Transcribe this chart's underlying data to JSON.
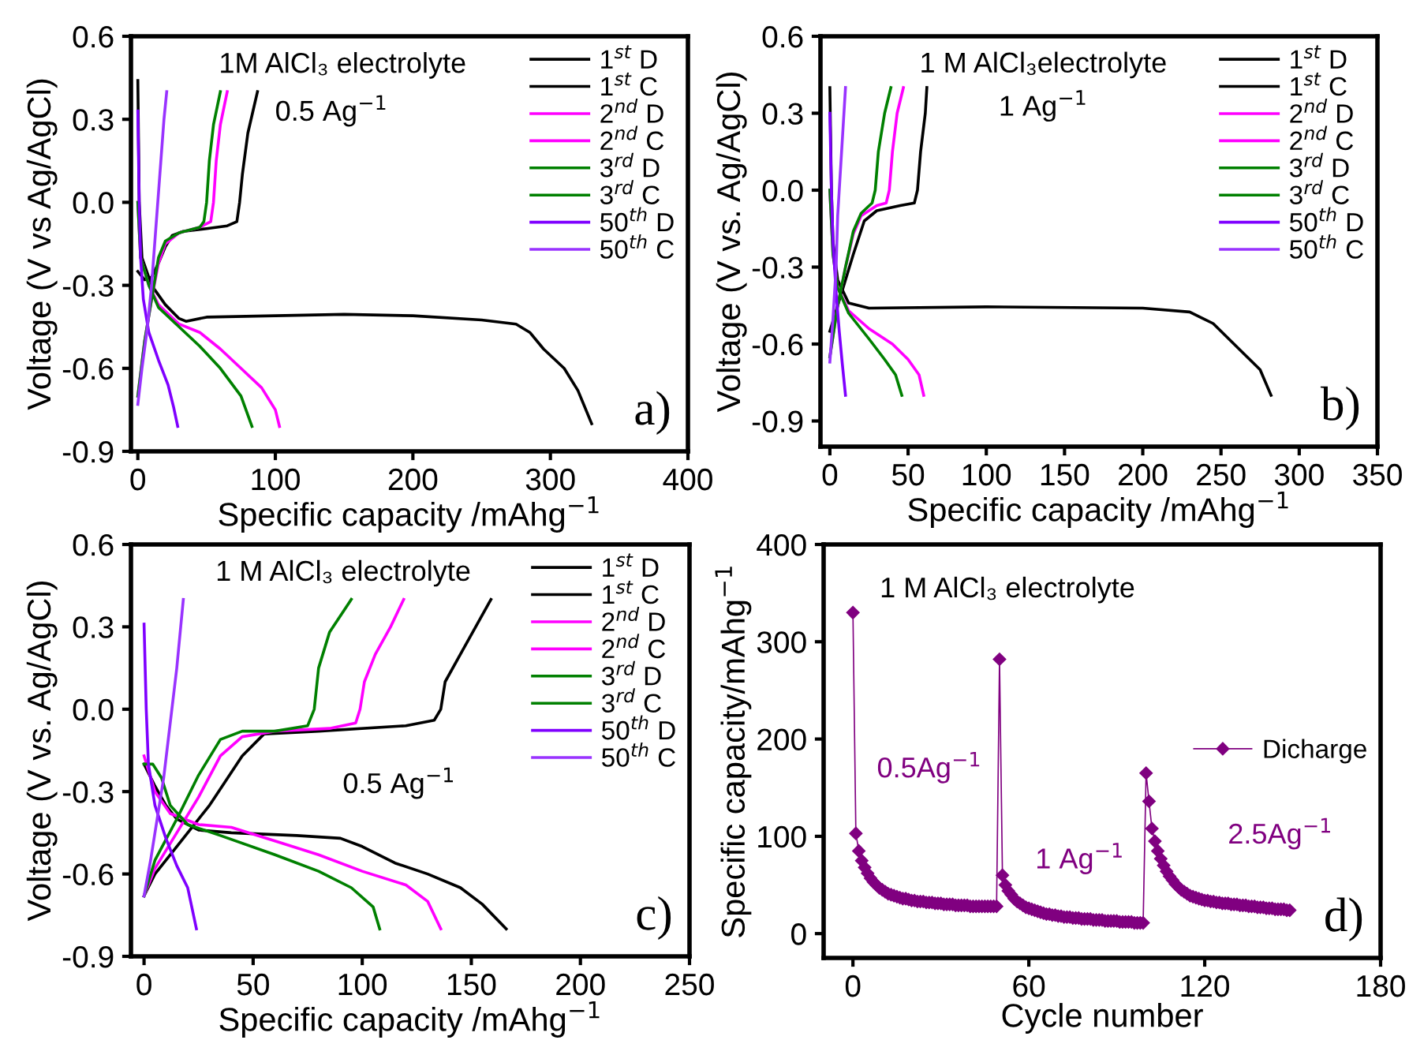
{
  "chart_data": [
    {
      "type": "line",
      "xlabel": "Specific capacity /mAhg$^{−1}$",
      "ylabel": "Voltage (V vs Ag/AgCl)",
      "xlim": [
        -5,
        400
      ],
      "ylim": [
        -0.9,
        0.6
      ],
      "xticks": [
        0,
        100,
        200,
        300,
        400
      ],
      "yticks": [
        {
          "value": -0.9,
          "label": "-0.9"
        },
        {
          "value": -0.6,
          "label": "-0.6"
        },
        {
          "value": -0.3,
          "label": "-0.3"
        },
        {
          "value": 0.0,
          "label": "0.0"
        },
        {
          "value": 0.3,
          "label": "0.3"
        },
        {
          "value": 0.6,
          "label": "0.6"
        }
      ],
      "grid": false,
      "legend": "top right",
      "annotations": [
        "1M AlCl₃ electrolyte",
        "0.5 Ag$^{−1}$",
        "a)"
      ],
      "series": [
        {
          "name": "1$^{st}$ D",
          "color": "#000000",
          "x": [
            0,
            1,
            3,
            10,
            20,
            30,
            35,
            50,
            100,
            150,
            200,
            250,
            275,
            285,
            295,
            310,
            320,
            330
          ],
          "values": [
            0.44,
            0.0,
            -0.2,
            -0.3,
            -0.37,
            -0.42,
            -0.43,
            -0.415,
            -0.41,
            -0.405,
            -0.41,
            -0.425,
            -0.44,
            -0.47,
            -0.53,
            -0.6,
            -0.68,
            -0.8
          ]
        },
        {
          "name": "1$^{st}$ C",
          "color": "#000000",
          "x": [
            0,
            5,
            10,
            15,
            20,
            25,
            33,
            50,
            65,
            72,
            74,
            76,
            80,
            87
          ],
          "values": [
            -0.25,
            -0.28,
            -0.27,
            -0.22,
            -0.16,
            -0.12,
            -0.105,
            -0.095,
            -0.085,
            -0.07,
            0.0,
            0.1,
            0.25,
            0.4
          ]
        },
        {
          "name": "2$^{nd}$ D",
          "color": "#ff00ff",
          "x": [
            0,
            2,
            8,
            15,
            30,
            45,
            60,
            75,
            90,
            100,
            103
          ],
          "values": [
            0.0,
            -0.2,
            -0.3,
            -0.37,
            -0.44,
            -0.47,
            -0.53,
            -0.6,
            -0.67,
            -0.75,
            -0.81
          ]
        },
        {
          "name": "2$^{nd}$ C",
          "color": "#ff00ff",
          "x": [
            0,
            5,
            10,
            15,
            20,
            30,
            45,
            53,
            55,
            57,
            60,
            65
          ],
          "values": [
            -0.7,
            -0.5,
            -0.35,
            -0.22,
            -0.15,
            -0.11,
            -0.09,
            -0.07,
            0.0,
            0.15,
            0.28,
            0.4
          ]
        },
        {
          "name": "3$^{rd}$ D",
          "color": "#008000",
          "x": [
            0,
            2,
            8,
            15,
            30,
            45,
            60,
            75,
            83
          ],
          "values": [
            0.0,
            -0.2,
            -0.3,
            -0.38,
            -0.45,
            -0.52,
            -0.6,
            -0.7,
            -0.81
          ]
        },
        {
          "name": "3$^{rd}$ C",
          "color": "#008000",
          "x": [
            0,
            5,
            10,
            15,
            20,
            30,
            45,
            48,
            50,
            52,
            55,
            60
          ],
          "values": [
            -0.7,
            -0.5,
            -0.35,
            -0.2,
            -0.14,
            -0.11,
            -0.09,
            -0.07,
            0.0,
            0.15,
            0.28,
            0.4
          ]
        },
        {
          "name": "50$^{th}$ D",
          "color": "#7f00ff",
          "x": [
            0,
            1,
            2,
            4,
            8,
            15,
            22,
            26,
            29
          ],
          "values": [
            0.33,
            0.0,
            -0.2,
            -0.35,
            -0.47,
            -0.57,
            -0.66,
            -0.74,
            -0.81
          ]
        },
        {
          "name": "50$^{th}$ C",
          "color": "#9933ff",
          "x": [
            0,
            3,
            7,
            10,
            13,
            16,
            19,
            21
          ],
          "values": [
            -0.73,
            -0.6,
            -0.45,
            -0.3,
            -0.1,
            0.1,
            0.3,
            0.4
          ]
        }
      ]
    },
    {
      "type": "line",
      "xlabel": "Specific capacity /mAhg$^{−1}$",
      "ylabel": "Voltage (V vs. Ag/AgCl)",
      "xlim": [
        -6,
        350
      ],
      "ylim": [
        -1.0,
        0.6
      ],
      "xticks": [
        0,
        50,
        100,
        150,
        200,
        250,
        300,
        350
      ],
      "yticks": [
        {
          "value": -0.9,
          "label": "-0.9"
        },
        {
          "value": -0.6,
          "label": "-0.6"
        },
        {
          "value": -0.3,
          "label": "-0.3"
        },
        {
          "value": 0.0,
          "label": "0.0"
        },
        {
          "value": 0.3,
          "label": "0.3"
        },
        {
          "value": 0.6,
          "label": "0.6"
        }
      ],
      "grid": false,
      "legend": "top right",
      "annotations": [
        "1 M AlCl₃electrolyte",
        "1 Ag$^{−1}$",
        "b)"
      ],
      "series": [
        {
          "name": "1$^{st}$ D",
          "color": "#000000",
          "x": [
            0,
            1,
            2,
            5,
            12,
            25,
            100,
            200,
            230,
            245,
            255,
            265,
            275,
            282
          ],
          "values": [
            0.4,
            0.0,
            -0.2,
            -0.35,
            -0.44,
            -0.46,
            -0.455,
            -0.46,
            -0.475,
            -0.52,
            -0.58,
            -0.64,
            -0.7,
            -0.8
          ]
        },
        {
          "name": "1$^{st}$ C",
          "color": "#000000",
          "x": [
            0,
            5,
            10,
            15,
            22,
            30,
            45,
            54,
            56,
            58,
            61,
            62
          ],
          "values": [
            -0.55,
            -0.45,
            -0.35,
            -0.25,
            -0.12,
            -0.08,
            -0.06,
            -0.05,
            0.0,
            0.15,
            0.3,
            0.4
          ]
        },
        {
          "name": "2$^{nd}$ D",
          "color": "#ff00ff",
          "x": [
            0,
            2,
            5,
            12,
            25,
            40,
            50,
            57,
            60
          ],
          "values": [
            0.0,
            -0.25,
            -0.38,
            -0.47,
            -0.54,
            -0.6,
            -0.66,
            -0.72,
            -0.8
          ]
        },
        {
          "name": "2$^{nd}$ C",
          "color": "#ff00ff",
          "x": [
            0,
            5,
            10,
            15,
            20,
            30,
            36,
            38,
            40,
            43,
            47
          ],
          "values": [
            -0.65,
            -0.45,
            -0.3,
            -0.17,
            -0.1,
            -0.06,
            -0.05,
            0.0,
            0.15,
            0.3,
            0.4
          ]
        },
        {
          "name": "3$^{rd}$ D",
          "color": "#008000",
          "x": [
            0,
            2,
            5,
            12,
            25,
            35,
            42,
            46
          ],
          "values": [
            0.0,
            -0.25,
            -0.38,
            -0.48,
            -0.58,
            -0.66,
            -0.72,
            -0.8
          ]
        },
        {
          "name": "3$^{rd}$ C",
          "color": "#008000",
          "x": [
            0,
            5,
            10,
            15,
            20,
            27,
            29,
            31,
            35,
            39
          ],
          "values": [
            -0.65,
            -0.45,
            -0.3,
            -0.16,
            -0.09,
            -0.05,
            0.0,
            0.15,
            0.3,
            0.4
          ]
        },
        {
          "name": "50$^{th}$ D",
          "color": "#7f00ff",
          "x": [
            0,
            1,
            2,
            4,
            6,
            8,
            10
          ],
          "values": [
            0.3,
            0.0,
            -0.2,
            -0.4,
            -0.55,
            -0.68,
            -0.8
          ]
        },
        {
          "name": "50$^{th}$ C",
          "color": "#9933ff",
          "x": [
            0,
            2,
            4,
            5,
            7,
            9,
            10
          ],
          "values": [
            -0.67,
            -0.5,
            -0.3,
            -0.1,
            0.1,
            0.3,
            0.4
          ]
        }
      ]
    },
    {
      "type": "line",
      "xlabel": "Specific capacity /mAhg$^{−1}$",
      "ylabel": "Voltage (V vs. Ag/AgCl)",
      "xlim": [
        -6,
        250
      ],
      "ylim": [
        -0.9,
        0.6
      ],
      "xticks": [
        0,
        50,
        100,
        150,
        200,
        250
      ],
      "yticks": [
        {
          "value": -0.9,
          "label": "-0.9"
        },
        {
          "value": -0.6,
          "label": "-0.6"
        },
        {
          "value": -0.3,
          "label": "-0.3"
        },
        {
          "value": 0.0,
          "label": "0.0"
        },
        {
          "value": 0.3,
          "label": "0.3"
        },
        {
          "value": 0.6,
          "label": "0.6"
        }
      ],
      "grid": false,
      "legend": "top right",
      "annotations": [
        "1 M AlCl₃ electrolyte",
        "0.5 Ag$^{−1}$",
        "c)"
      ],
      "series": [
        {
          "name": "1$^{st}$ D",
          "color": "#000000",
          "x": [
            0,
            5,
            10,
            15,
            25,
            40,
            70,
            90,
            100,
            115,
            130,
            145,
            155,
            166
          ],
          "values": [
            -0.2,
            -0.28,
            -0.35,
            -0.4,
            -0.44,
            -0.45,
            -0.46,
            -0.47,
            -0.5,
            -0.56,
            -0.6,
            -0.65,
            -0.71,
            -0.8
          ]
        },
        {
          "name": "1$^{st}$ C",
          "color": "#000000",
          "x": [
            0,
            5,
            15,
            30,
            45,
            55,
            80,
            120,
            133,
            136,
            138,
            145,
            152,
            159
          ],
          "values": [
            -0.68,
            -0.6,
            -0.5,
            -0.35,
            -0.17,
            -0.09,
            -0.08,
            -0.06,
            -0.04,
            0.0,
            0.1,
            0.2,
            0.3,
            0.4
          ]
        },
        {
          "name": "2$^{nd}$ D",
          "color": "#ff00ff",
          "x": [
            0,
            5,
            12,
            25,
            40,
            60,
            80,
            100,
            120,
            130,
            136
          ],
          "values": [
            -0.17,
            -0.3,
            -0.38,
            -0.42,
            -0.43,
            -0.48,
            -0.53,
            -0.59,
            -0.64,
            -0.7,
            -0.8
          ]
        },
        {
          "name": "2$^{nd}$ C",
          "color": "#ff00ff",
          "x": [
            0,
            5,
            15,
            25,
            35,
            45,
            60,
            85,
            97,
            99,
            101,
            106,
            113,
            119
          ],
          "values": [
            -0.68,
            -0.58,
            -0.45,
            -0.32,
            -0.17,
            -0.1,
            -0.08,
            -0.07,
            -0.05,
            0.0,
            0.1,
            0.2,
            0.3,
            0.4
          ]
        },
        {
          "name": "3$^{rd}$ D",
          "color": "#008000",
          "x": [
            0,
            4,
            8,
            12,
            20,
            35,
            60,
            80,
            95,
            105,
            108
          ],
          "values": [
            -0.2,
            -0.2,
            -0.25,
            -0.35,
            -0.42,
            -0.46,
            -0.53,
            -0.59,
            -0.65,
            -0.72,
            -0.8
          ]
        },
        {
          "name": "3$^{rd}$ C",
          "color": "#008000",
          "x": [
            0,
            5,
            15,
            25,
            35,
            45,
            60,
            75,
            78,
            80,
            85,
            95
          ],
          "values": [
            -0.68,
            -0.55,
            -0.4,
            -0.24,
            -0.11,
            -0.08,
            -0.08,
            -0.06,
            0.0,
            0.15,
            0.28,
            0.4
          ]
        },
        {
          "name": "50$^{th}$ D",
          "color": "#7f00ff",
          "x": [
            0,
            1,
            2,
            5,
            10,
            15,
            20,
            24
          ],
          "values": [
            0.31,
            0.0,
            -0.2,
            -0.35,
            -0.47,
            -0.57,
            -0.65,
            -0.8
          ]
        },
        {
          "name": "50$^{th}$ C",
          "color": "#9933ff",
          "x": [
            0,
            3,
            6,
            9,
            12,
            15,
            18
          ],
          "values": [
            -0.68,
            -0.55,
            -0.4,
            -0.25,
            -0.05,
            0.15,
            0.4
          ]
        }
      ]
    },
    {
      "type": "line",
      "xlabel": "Cycle number",
      "ylabel": "Specific capacity/mAhg$^{−1}$",
      "xlim": [
        -10,
        180
      ],
      "ylim": [
        -25,
        400
      ],
      "xticks": [
        0,
        60,
        120,
        180
      ],
      "yticks": [
        0,
        100,
        200,
        300,
        400
      ],
      "grid": false,
      "legend": "right",
      "marker": "diamond",
      "annotations": [
        "1 M AlCl₃ electrolyte",
        "d)",
        "0.5Ag$^{−1}$",
        "1 Ag$^{−1}$",
        "2.5Ag$^{−1}$"
      ],
      "series": [
        {
          "name": "Dicharge",
          "color": "#800080",
          "x": [
            0,
            1,
            2,
            3,
            4,
            5,
            6,
            7,
            8,
            9,
            10,
            11,
            12,
            13,
            14,
            15,
            16,
            17,
            18,
            19,
            20,
            21,
            22,
            23,
            24,
            25,
            26,
            27,
            28,
            29,
            30,
            31,
            32,
            33,
            34,
            35,
            36,
            37,
            38,
            39,
            40,
            41,
            42,
            43,
            44,
            45,
            46,
            47,
            48,
            49,
            50,
            51,
            52,
            53,
            54,
            55,
            56,
            57,
            58,
            59,
            60,
            61,
            62,
            63,
            64,
            65,
            66,
            67,
            68,
            69,
            70,
            71,
            72,
            73,
            74,
            75,
            76,
            77,
            78,
            79,
            80,
            81,
            82,
            83,
            84,
            85,
            86,
            87,
            88,
            89,
            90,
            91,
            92,
            93,
            94,
            95,
            96,
            97,
            98,
            99,
            100,
            101,
            102,
            103,
            104,
            105,
            106,
            107,
            108,
            109,
            110,
            111,
            112,
            113,
            114,
            115,
            116,
            117,
            118,
            119,
            120,
            121,
            122,
            123,
            124,
            125,
            126,
            127,
            128,
            129,
            130,
            131,
            132,
            133,
            134,
            135,
            136,
            137,
            138,
            139,
            140,
            141,
            142,
            143,
            144,
            145,
            146,
            147,
            148,
            149
          ],
          "values": [
            330,
            103,
            85,
            75,
            68,
            62,
            57,
            53,
            50,
            47,
            45,
            43,
            41,
            40,
            39,
            38,
            37,
            36,
            36,
            35,
            34,
            34,
            33,
            33,
            33,
            32,
            32,
            32,
            31,
            31,
            31,
            30,
            30,
            30,
            30,
            29,
            29,
            29,
            29,
            29,
            28,
            28,
            28,
            28,
            28,
            28,
            28,
            28,
            28,
            28,
            282,
            60,
            50,
            44,
            40,
            36,
            33,
            31,
            29,
            27,
            26,
            25,
            24,
            23,
            22,
            21,
            20,
            20,
            19,
            19,
            18,
            18,
            17,
            17,
            17,
            16,
            16,
            16,
            15,
            15,
            15,
            15,
            14,
            14,
            14,
            14,
            13,
            13,
            13,
            13,
            13,
            12,
            12,
            12,
            12,
            12,
            11,
            11,
            11,
            11,
            165,
            136,
            108,
            95,
            85,
            77,
            70,
            64,
            59,
            55,
            51,
            48,
            45,
            43,
            41,
            39,
            38,
            37,
            36,
            35,
            34,
            34,
            33,
            33,
            32,
            32,
            31,
            31,
            31,
            30,
            30,
            30,
            29,
            29,
            29,
            28,
            28,
            28,
            27,
            27,
            27,
            26,
            26,
            26,
            25,
            25,
            25,
            25,
            24,
            24
          ]
        }
      ]
    }
  ]
}
